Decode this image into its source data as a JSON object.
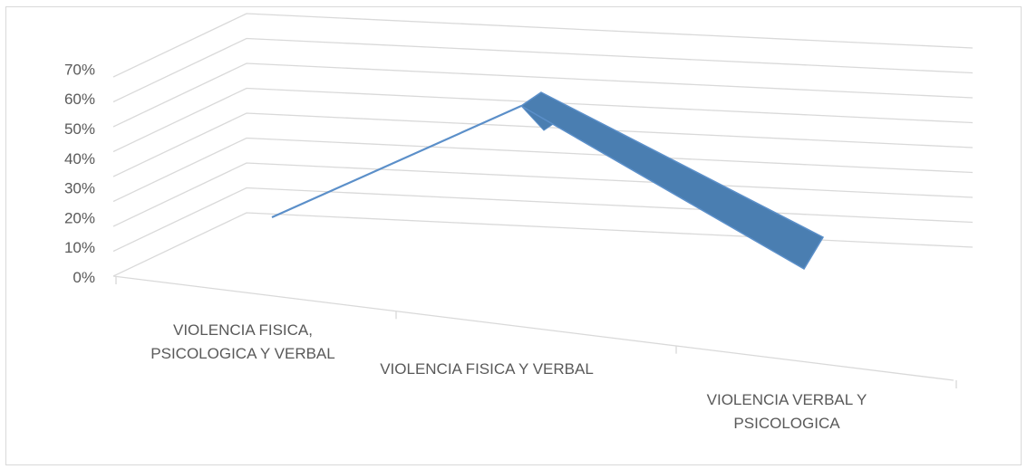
{
  "chart_data": {
    "type": "line",
    "style": "3d-line",
    "title": "",
    "xlabel": "",
    "ylabel": "",
    "categories": [
      [
        "VIOLENCIA FISICA,",
        "PSICOLOGICA Y VERBAL"
      ],
      [
        "VIOLENCIA FISICA Y VERBAL"
      ],
      [
        "VIOLENCIA VERBAL Y",
        "PSICOLOGICA"
      ]
    ],
    "y_ticks": [
      "0%",
      "10%",
      "20%",
      "30%",
      "40%",
      "50%",
      "60%",
      "70%"
    ],
    "ylim": [
      0,
      0.8
    ],
    "grid": true,
    "legend": "none",
    "series": [
      {
        "values": [
          0.2,
          0.7,
          0.1
        ],
        "color": "#4a7eb1"
      }
    ]
  }
}
